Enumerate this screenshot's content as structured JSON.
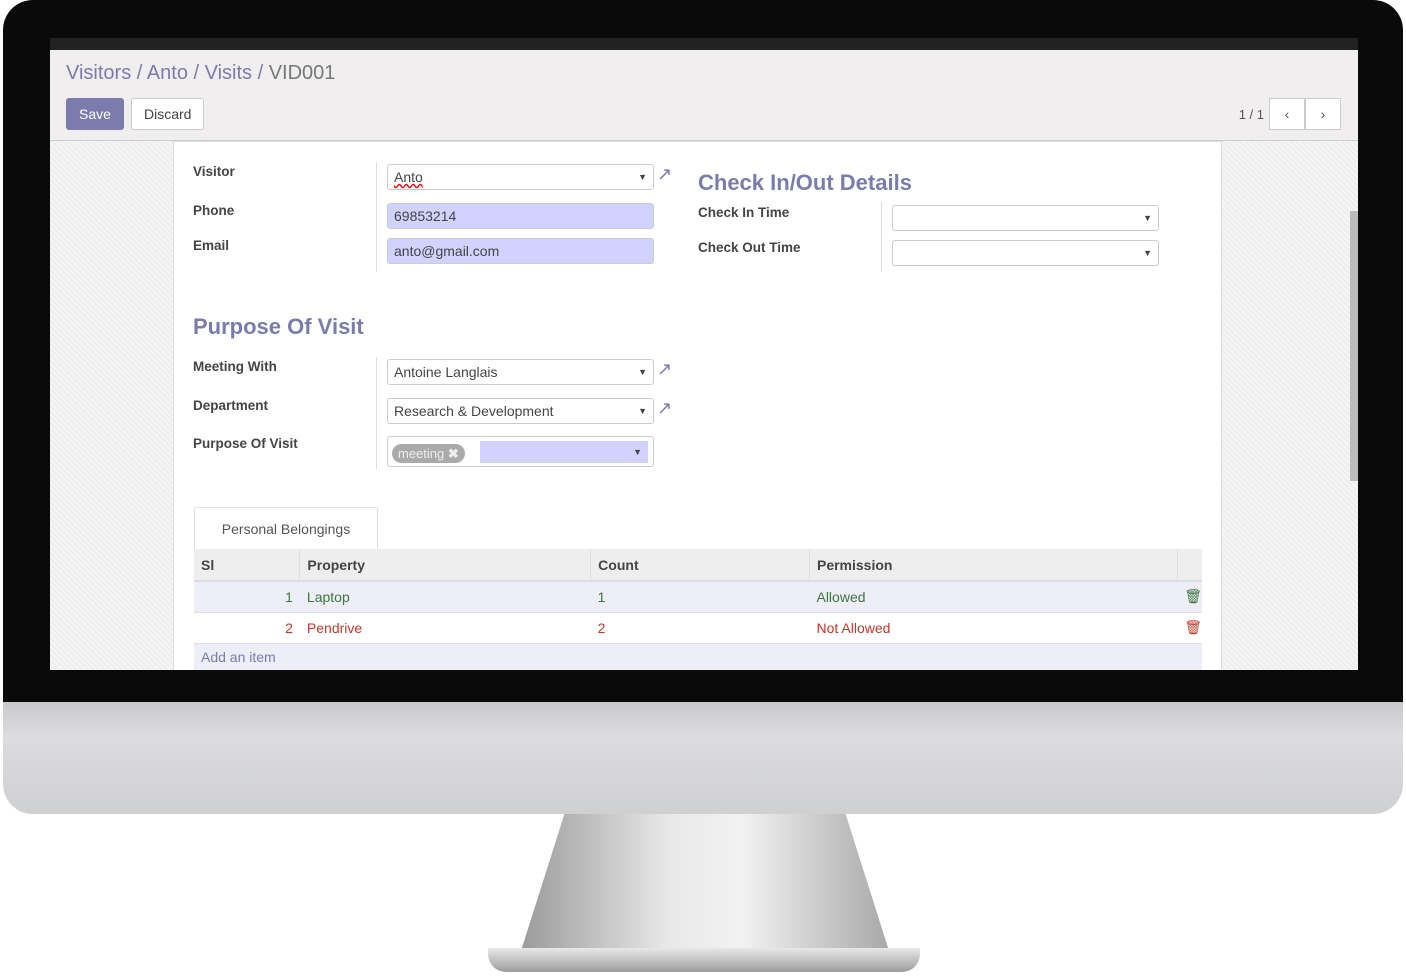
{
  "breadcrumb": [
    "Visitors",
    "Anto",
    "Visits"
  ],
  "breadcrumb_current": "VID001",
  "toolbar": {
    "save": "Save",
    "discard": "Discard"
  },
  "pager": {
    "value": "1 / 1",
    "prev": "‹",
    "next": "›"
  },
  "form": {
    "visitor_label": "Visitor",
    "visitor": "Anto",
    "phone_label": "Phone",
    "phone": "69853214",
    "email_label": "Email",
    "email": "anto@gmail.com",
    "checkio_title": "Check In/Out Details",
    "check_in_label": "Check In Time",
    "check_in": "",
    "check_out_label": "Check Out Time",
    "check_out": "",
    "purpose_title": "Purpose Of Visit",
    "meeting_with_label": "Meeting With",
    "meeting_with": "Antoine Langlais",
    "department_label": "Department",
    "department": "Research & Development",
    "purpose_label": "Purpose Of Visit",
    "purpose_tag": "meeting"
  },
  "tabs": [
    "Personal Belongings"
  ],
  "table": {
    "columns": [
      "Sl",
      "Property",
      "Count",
      "Permission"
    ],
    "rows": [
      {
        "sl": "1",
        "property": "Laptop",
        "count": "1",
        "permission": "Allowed"
      },
      {
        "sl": "2",
        "property": "Pendrive",
        "count": "2",
        "permission": "Not Allowed"
      }
    ],
    "add_item": "Add an item"
  },
  "colors": {
    "accent": "#7c7bad",
    "allowed": "#3c763d",
    "not_allowed": "#c0392b"
  }
}
